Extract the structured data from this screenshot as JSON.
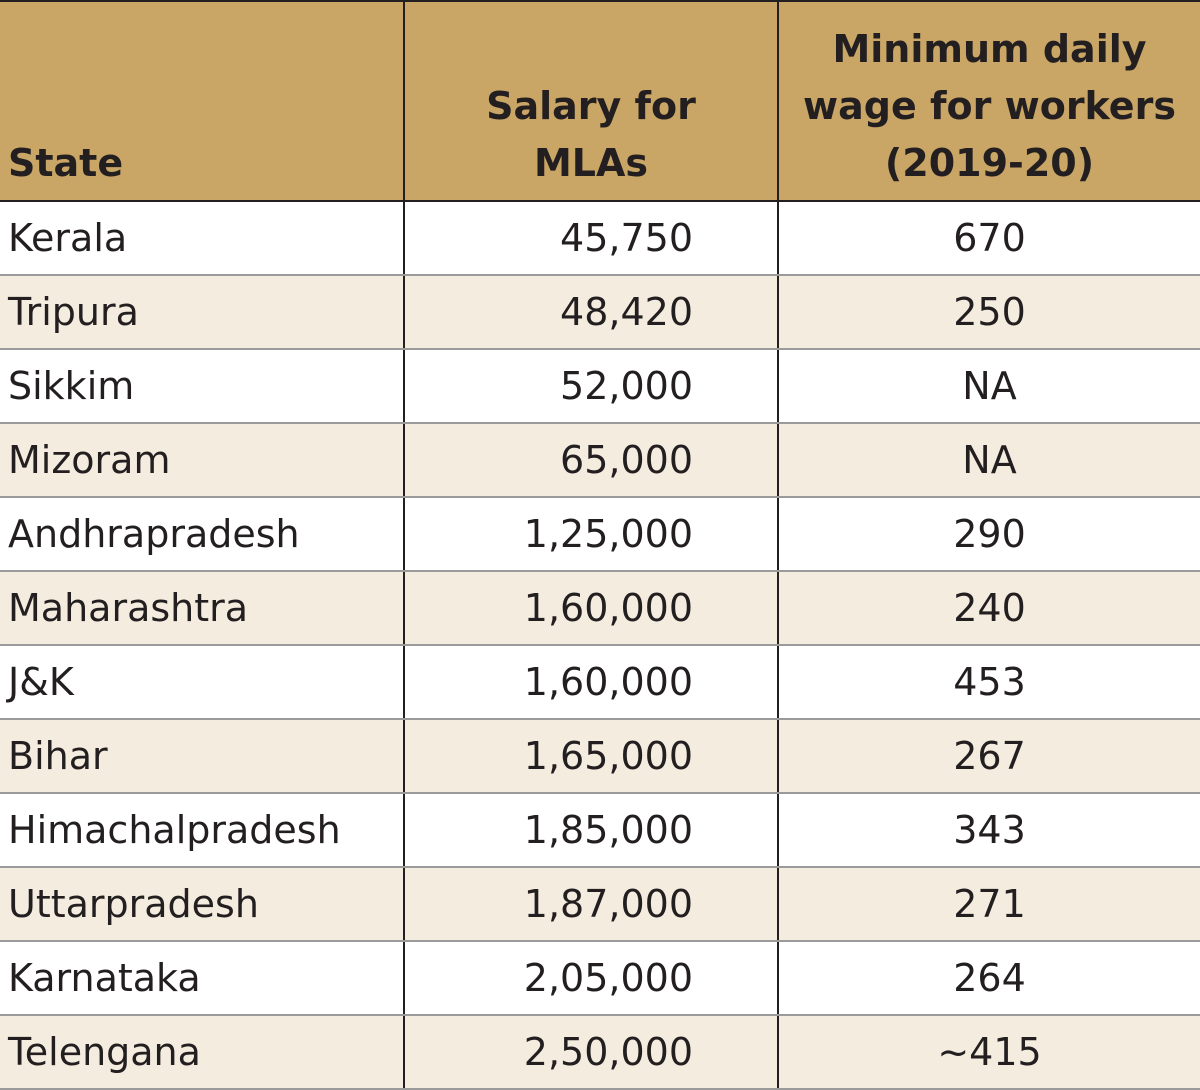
{
  "table": {
    "header": {
      "state": "State",
      "salary_line1": "Salary for",
      "salary_line2": "MLAs",
      "wage_line1": "Minimum daily",
      "wage_line2": "wage for workers",
      "wage_line3": "(2019-20)"
    },
    "rows": [
      {
        "state": "Kerala",
        "salary": "45,750",
        "wage": "670"
      },
      {
        "state": "Tripura",
        "salary": "48,420",
        "wage": "250"
      },
      {
        "state": "Sikkim",
        "salary": "52,000",
        "wage": "NA"
      },
      {
        "state": "Mizoram",
        "salary": "65,000",
        "wage": "NA"
      },
      {
        "state": "Andhrapradesh",
        "salary": "1,25,000",
        "wage": "290"
      },
      {
        "state": "Maharashtra",
        "salary": "1,60,000",
        "wage": "240"
      },
      {
        "state": "J&K",
        "salary": "1,60,000",
        "wage": "453"
      },
      {
        "state": "Bihar",
        "salary": "1,65,000",
        "wage": "267"
      },
      {
        "state": "Himachalpradesh",
        "salary": "1,85,000",
        "wage": "343"
      },
      {
        "state": "Uttarpradesh",
        "salary": "1,87,000",
        "wage": "271"
      },
      {
        "state": "Karnataka",
        "salary": "2,05,000",
        "wage": "264"
      },
      {
        "state": "Telengana",
        "salary": "2,50,000",
        "wage": "~415"
      }
    ]
  },
  "colors": {
    "header_bg": "#c9a566",
    "row_alt_bg": "#f4ecdf",
    "text": "#231f20"
  }
}
